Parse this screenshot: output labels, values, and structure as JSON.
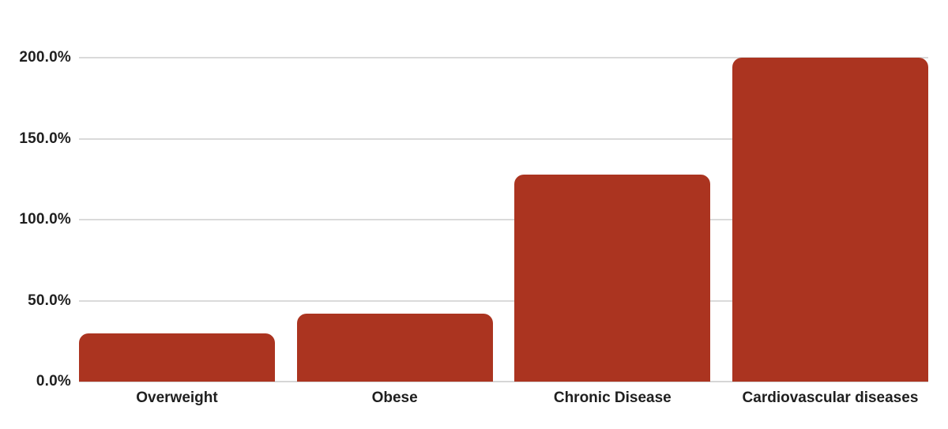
{
  "chart_data": {
    "type": "bar",
    "title": "",
    "xlabel": "",
    "ylabel": "",
    "categories": [
      "Overweight",
      "Obese",
      "Chronic Disease",
      "Cardiovascular diseases"
    ],
    "values": [
      30,
      42,
      128,
      200
    ],
    "value_unit": "%",
    "ylim": [
      0,
      200
    ],
    "y_ticks": [
      {
        "value": 0,
        "label": "0.0%"
      },
      {
        "value": 50,
        "label": "50.0%"
      },
      {
        "value": 100,
        "label": "100.0%"
      },
      {
        "value": 150,
        "label": "150.0%"
      },
      {
        "value": 200,
        "label": "200.0%"
      }
    ],
    "grid": true,
    "legend": false,
    "colors": {
      "bar": "#ab3420",
      "gridline": "#dadada",
      "baseline": "#d6d6d6",
      "label_text": "#1f1f1f",
      "background": "#ffffff"
    }
  }
}
